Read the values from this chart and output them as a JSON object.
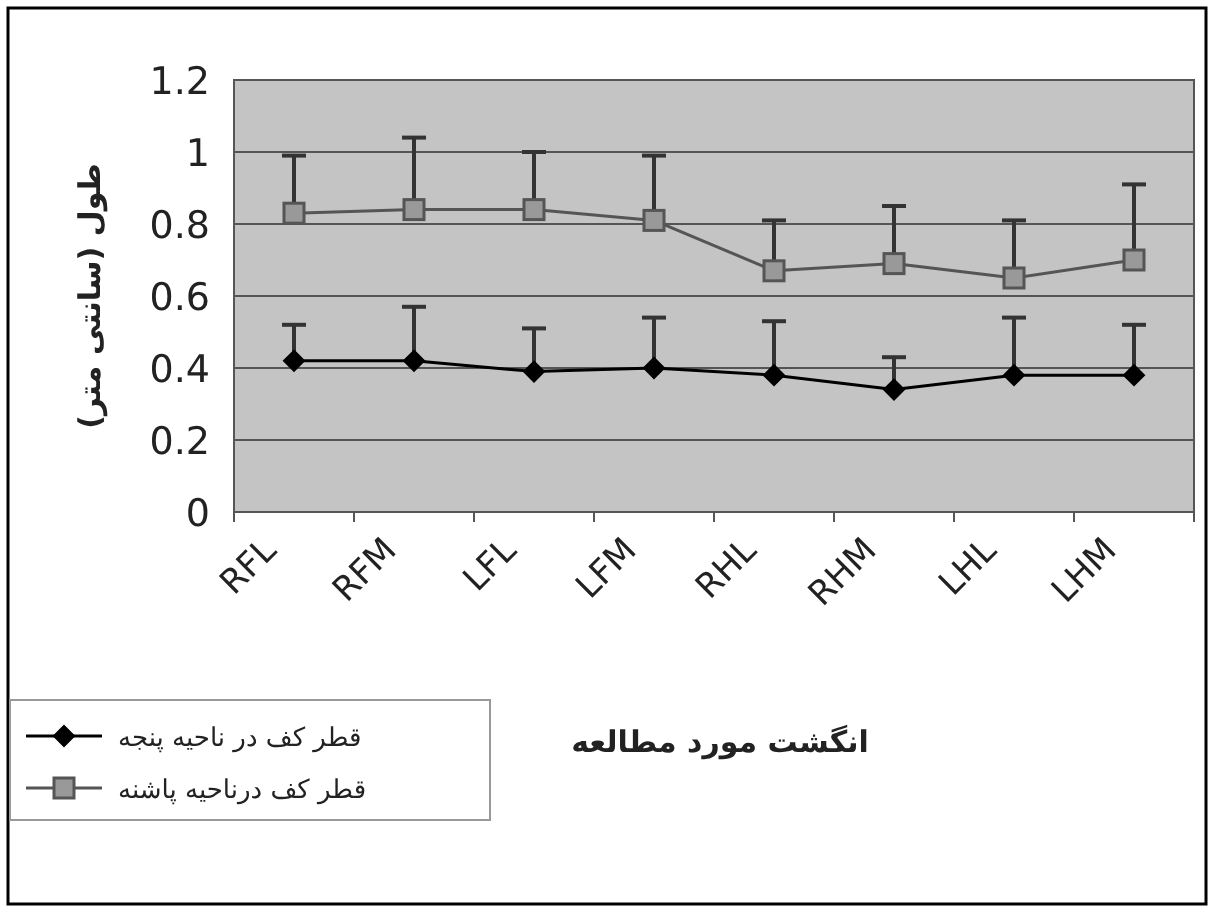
{
  "chart_data": {
    "type": "line",
    "xlabel": "انگشت مورد مطالعه",
    "ylabel": "طول (سانتی متر)",
    "categories": [
      "RFL",
      "RFM",
      "LFL",
      "LFM",
      "RHL",
      "RHM",
      "LHL",
      "LHM"
    ],
    "ylim": [
      0,
      1.2
    ],
    "yticks": [
      0,
      0.2,
      0.4,
      0.6,
      0.8,
      1,
      1.2
    ],
    "grid": "y",
    "legend": "bottom left",
    "line_style": "solid",
    "series": [
      {
        "name": "قطر کف در ناحیه پنجه",
        "color": "#000000",
        "marker": "diamond",
        "values": [
          0.42,
          0.42,
          0.39,
          0.4,
          0.38,
          0.34,
          0.38,
          0.38
        ],
        "errors": [
          [
            0.42,
            0.52
          ],
          [
            0.42,
            0.57
          ],
          [
            0.39,
            0.51
          ],
          [
            0.4,
            0.54
          ],
          [
            0.38,
            0.53
          ],
          [
            0.34,
            0.43
          ],
          [
            0.38,
            0.54
          ],
          [
            0.38,
            0.52
          ]
        ]
      },
      {
        "name": "قطر کف درناحیه پاشنه",
        "color": "#555555",
        "marker": "square",
        "values": [
          0.83,
          0.84,
          0.84,
          0.81,
          0.67,
          0.69,
          0.65,
          0.7
        ],
        "errors": [
          [
            0.83,
            0.99
          ],
          [
            0.84,
            1.04
          ],
          [
            0.84,
            1.0
          ],
          [
            0.81,
            0.99
          ],
          [
            0.67,
            0.81
          ],
          [
            0.69,
            0.85
          ],
          [
            0.65,
            0.81
          ],
          [
            0.7,
            0.91
          ]
        ]
      }
    ]
  }
}
